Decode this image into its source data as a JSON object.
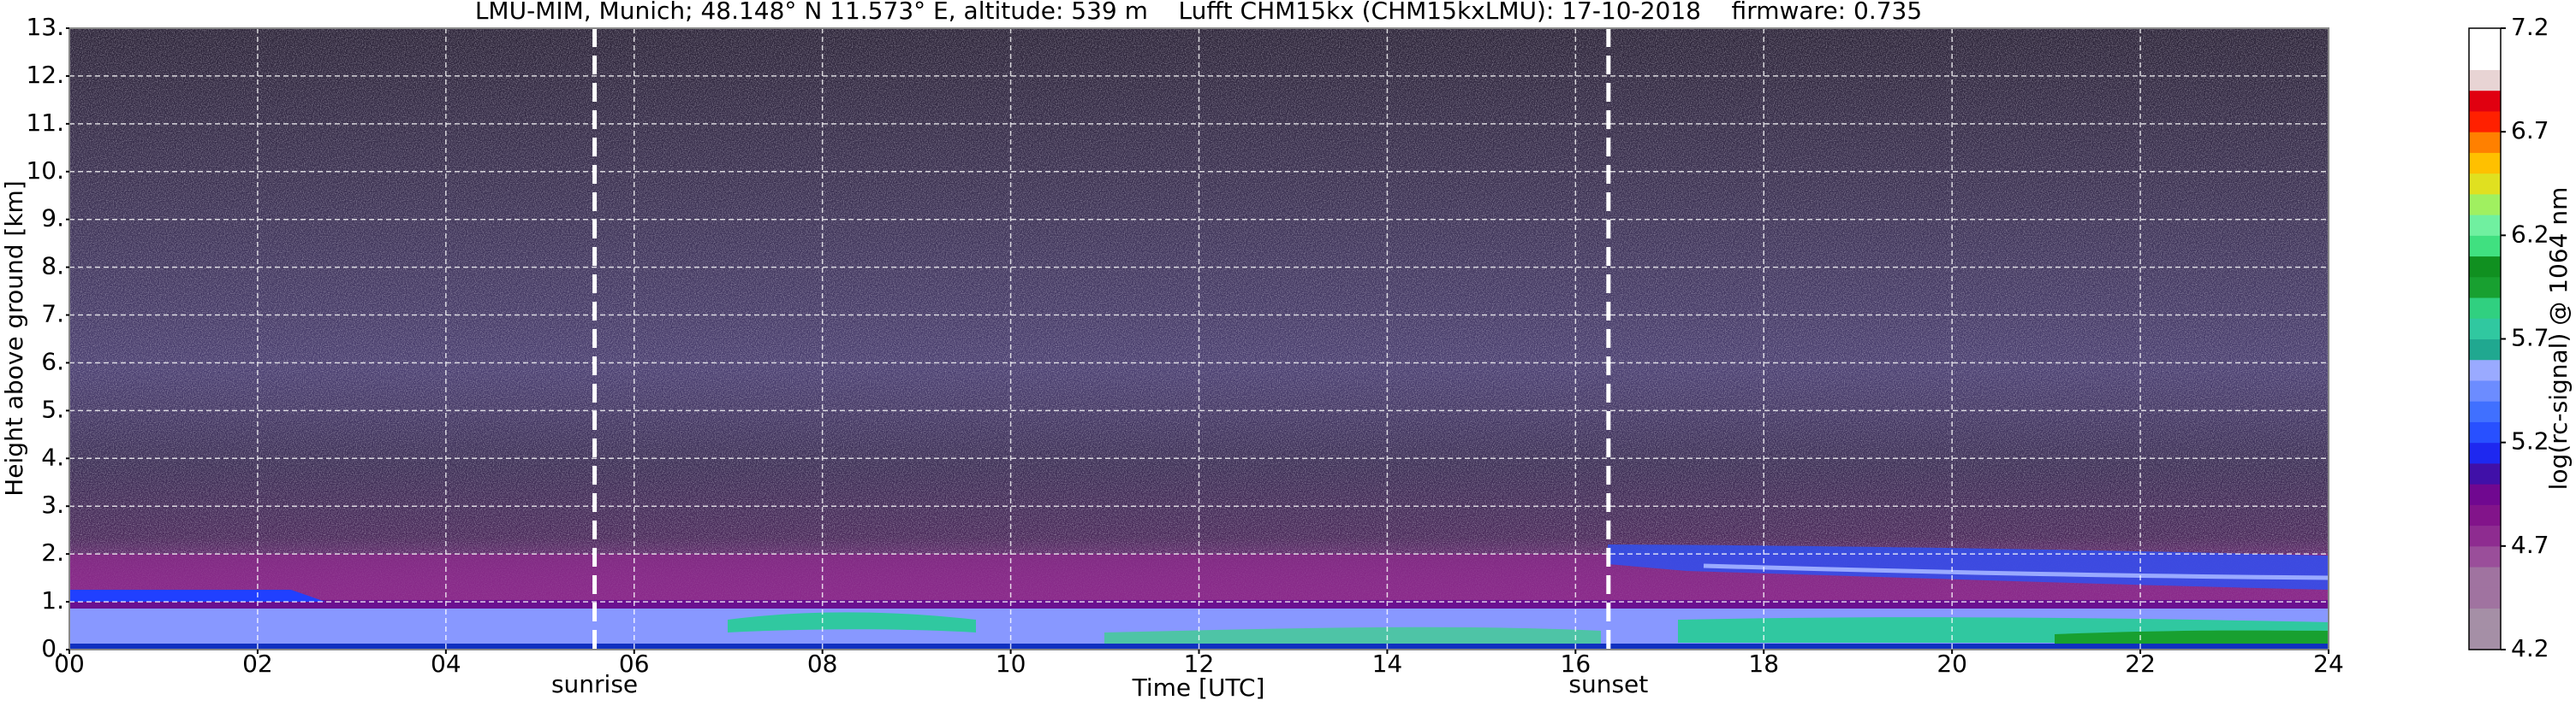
{
  "chart_data": {
    "type": "heatmap",
    "title": "LMU-MIM, Munich; 48.148° N 11.573° E, altitude: 539 m    Lufft CHM15kx (CHM15kxLMU): 17-10-2018    firmware: 0.735",
    "xlabel": "Time [UTC]",
    "ylabel": "Height above ground [km]",
    "xlim": [
      0,
      24
    ],
    "xticks": [
      {
        "value": 0,
        "label": "00"
      },
      {
        "value": 2,
        "label": "02"
      },
      {
        "value": 4,
        "label": "04"
      },
      {
        "value": 6,
        "label": "06"
      },
      {
        "value": 8,
        "label": "08"
      },
      {
        "value": 10,
        "label": "10"
      },
      {
        "value": 12,
        "label": "12"
      },
      {
        "value": 14,
        "label": "14"
      },
      {
        "value": 16,
        "label": "16"
      },
      {
        "value": 18,
        "label": "18"
      },
      {
        "value": 20,
        "label": "20"
      },
      {
        "value": 22,
        "label": "22"
      },
      {
        "value": 24,
        "label": "24"
      }
    ],
    "ylim": [
      0,
      13
    ],
    "yticks": [
      {
        "value": 0,
        "label": "0."
      },
      {
        "value": 1,
        "label": "1."
      },
      {
        "value": 2,
        "label": "2."
      },
      {
        "value": 3,
        "label": "3."
      },
      {
        "value": 4,
        "label": "4."
      },
      {
        "value": 5,
        "label": "5."
      },
      {
        "value": 6,
        "label": "6."
      },
      {
        "value": 7,
        "label": "7."
      },
      {
        "value": 8,
        "label": "8."
      },
      {
        "value": 9,
        "label": "9."
      },
      {
        "value": 10,
        "label": "10."
      },
      {
        "value": 11,
        "label": "11."
      },
      {
        "value": 12,
        "label": "12."
      },
      {
        "value": 13,
        "label": "13."
      }
    ],
    "grid": true,
    "annotations": [
      {
        "text": "sunrise",
        "x": 5.58
      },
      {
        "text": "sunset",
        "x": 16.35
      }
    ],
    "colorbar": {
      "label": "log(rc-signal) @ 1064 nm",
      "lim": [
        4.2,
        7.2
      ],
      "ticks": [
        4.2,
        4.7,
        5.2,
        5.7,
        6.2,
        6.7,
        7.2
      ],
      "colors": [
        "#a58fa6",
        "#a58fa6",
        "#a073a0",
        "#a073a0",
        "#9a4e9a",
        "#8e2c90",
        "#82148a",
        "#700890",
        "#4010a8",
        "#1e28f0",
        "#2850ff",
        "#4070ff",
        "#6c8cff",
        "#9aaaff",
        "#20a890",
        "#30c8a0",
        "#30d080",
        "#18a030",
        "#109020",
        "#40e080",
        "#70f0a0",
        "#a0f060",
        "#e0e020",
        "#ffc000",
        "#ff8000",
        "#ff2000",
        "#e00010",
        "#e8d4d4",
        "#ffffff",
        "#ffffff"
      ]
    }
  }
}
